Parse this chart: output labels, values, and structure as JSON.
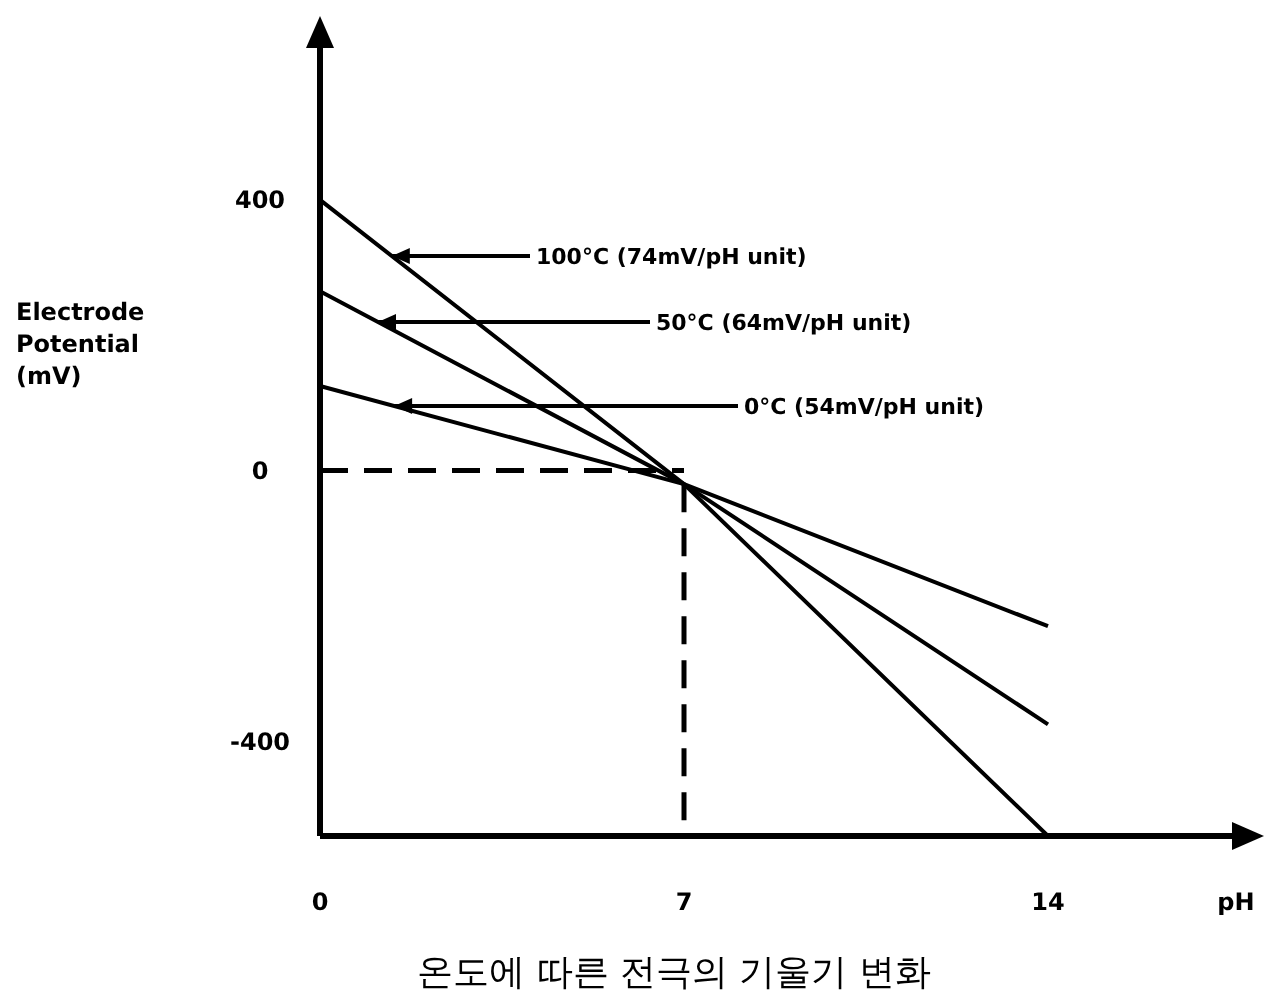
{
  "chart_data": {
    "type": "line",
    "title": "온도에 따른 전극의 기울기 변화",
    "xlabel": "pH",
    "ylabel": "Electrode Potential (mV)",
    "x": [
      0,
      7,
      14
    ],
    "series": [
      {
        "name": "100°C (74mV/pH unit)",
        "color": "#000000",
        "values": [
          400,
          -20,
          -540
        ]
      },
      {
        "name": "50°C (64mV/pH unit)",
        "color": "#000000",
        "values": [
          265,
          -20,
          -375
        ]
      },
      {
        "name": "0°C (54mV/pH unit)",
        "color": "#000000",
        "values": [
          125,
          -20,
          -230
        ]
      }
    ],
    "xlim": [
      0,
      18
    ],
    "xticks": [
      0,
      7,
      14
    ],
    "ylim": [
      -540,
      660
    ],
    "yticks": [
      {
        "value": 400,
        "label": "400"
      },
      0,
      {
        "value": -400,
        "label": "-400"
      }
    ],
    "ref_lines": [
      {
        "axis": "y",
        "value": 0,
        "line_style": "dashed"
      },
      {
        "axis": "x",
        "value": 7,
        "line_style": "dashed"
      }
    ],
    "grid": false,
    "legend": "top left",
    "line_style": "solid"
  }
}
